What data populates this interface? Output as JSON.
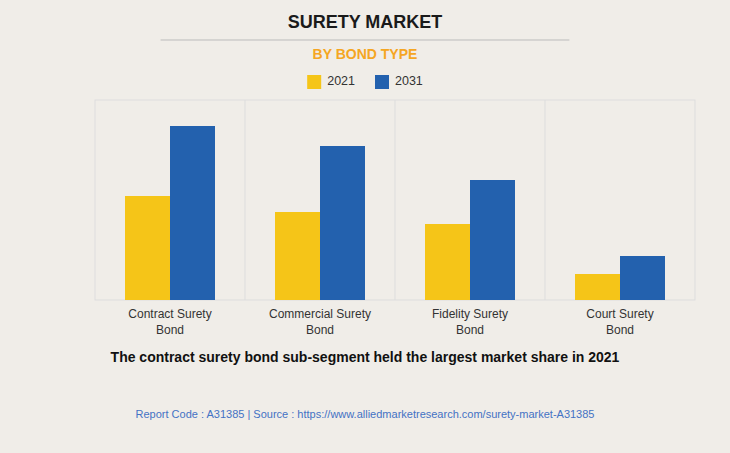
{
  "chart_data": {
    "type": "bar",
    "title": "SURETY MARKET",
    "subtitle": "BY BOND TYPE",
    "categories": [
      "Contract Surety\nBond",
      "Commercial Surety\nBond",
      "Fidelity Surety\nBond",
      "Court Surety\nBond"
    ],
    "series": [
      {
        "name": "2021",
        "color": "#F5C518",
        "values": [
          0.52,
          0.44,
          0.38,
          0.13
        ]
      },
      {
        "name": "2031",
        "color": "#2361AE",
        "values": [
          0.87,
          0.77,
          0.6,
          0.22
        ]
      }
    ],
    "ylim": [
      0,
      1.0
    ],
    "tick_labels": "x",
    "legend": "top",
    "annotations": [
      "The contract surety bond sub-segment held the largest market share in 2021",
      "Report Code : A31385  |  Source : https://www.alliedmarketresearch.com/surety-market-A31385"
    ]
  }
}
